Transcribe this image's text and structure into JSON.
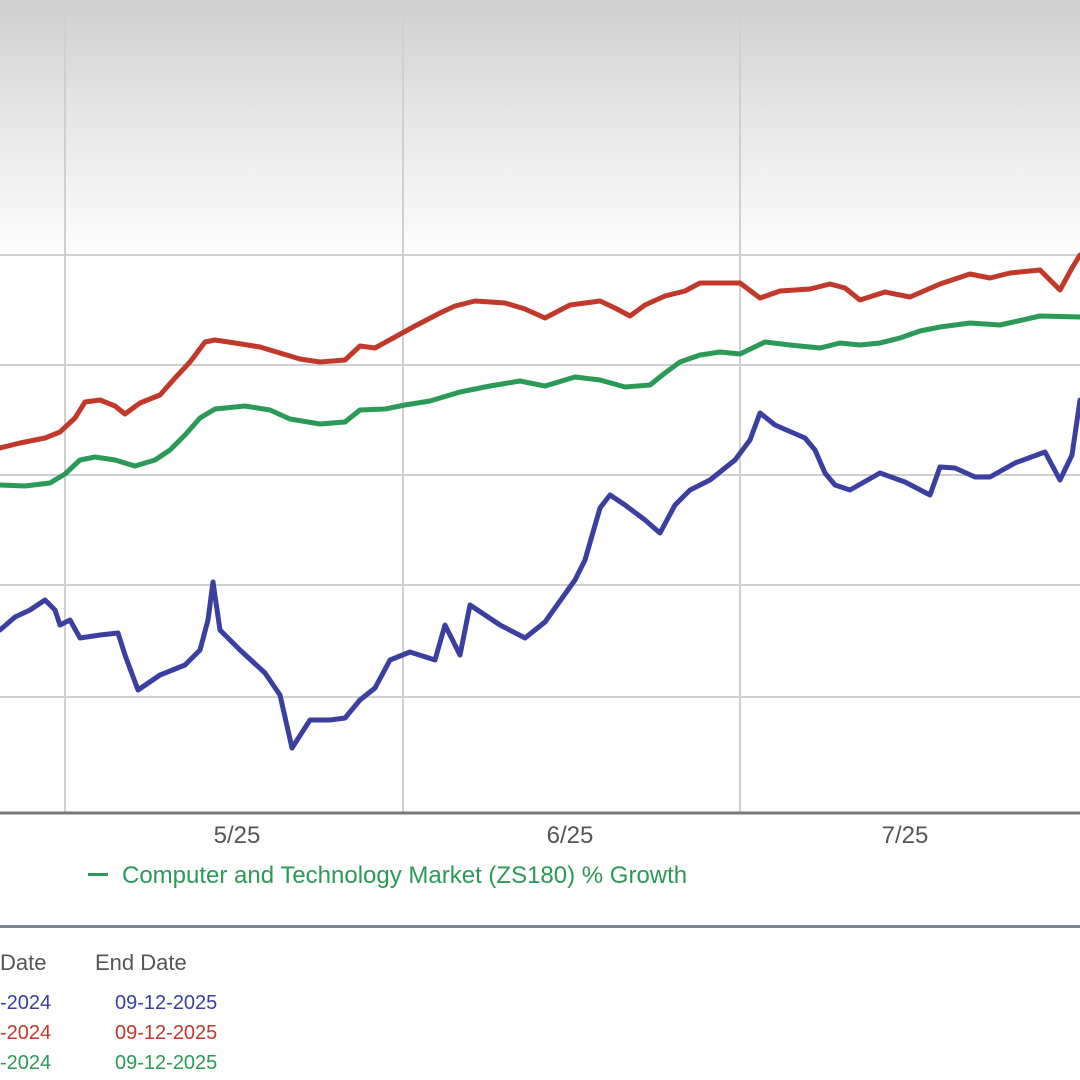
{
  "colors": {
    "series_blue": "#3a3fa0",
    "series_red": "#c0392b",
    "series_green": "#2a9a56",
    "grid": "#d0d0d0"
  },
  "chart_data": {
    "type": "line",
    "x_ticks": [
      "5/25",
      "6/25",
      "7/25"
    ],
    "grid": true,
    "series": [
      {
        "color": "red",
        "values": [
          [
            0,
            448
          ],
          [
            20,
            443
          ],
          [
            45,
            438
          ],
          [
            60,
            432
          ],
          [
            75,
            418
          ],
          [
            85,
            402
          ],
          [
            100,
            400
          ],
          [
            115,
            406
          ],
          [
            125,
            414
          ],
          [
            140,
            403
          ],
          [
            160,
            395
          ],
          [
            175,
            378
          ],
          [
            190,
            362
          ],
          [
            205,
            342
          ],
          [
            215,
            340
          ],
          [
            235,
            343
          ],
          [
            260,
            347
          ],
          [
            280,
            353
          ],
          [
            300,
            359
          ],
          [
            320,
            362
          ],
          [
            345,
            360
          ],
          [
            360,
            346
          ],
          [
            375,
            348
          ],
          [
            395,
            337
          ],
          [
            415,
            326
          ],
          [
            440,
            313
          ],
          [
            455,
            306
          ],
          [
            475,
            301
          ],
          [
            505,
            303
          ],
          [
            525,
            309
          ],
          [
            545,
            318
          ],
          [
            570,
            305
          ],
          [
            600,
            301
          ],
          [
            615,
            308
          ],
          [
            630,
            316
          ],
          [
            645,
            305
          ],
          [
            665,
            296
          ],
          [
            685,
            291
          ],
          [
            700,
            283
          ],
          [
            740,
            283
          ],
          [
            760,
            298
          ],
          [
            780,
            291
          ],
          [
            810,
            289
          ],
          [
            830,
            284
          ],
          [
            845,
            288
          ],
          [
            860,
            300
          ],
          [
            885,
            292
          ],
          [
            910,
            297
          ],
          [
            940,
            284
          ],
          [
            970,
            274
          ],
          [
            990,
            278
          ],
          [
            1010,
            273
          ],
          [
            1040,
            270
          ],
          [
            1060,
            290
          ],
          [
            1072,
            268
          ],
          [
            1080,
            255
          ]
        ]
      },
      {
        "color": "green",
        "series_label": "Computer and Technology Market (ZS180) % Growth",
        "values": [
          [
            0,
            485
          ],
          [
            25,
            486
          ],
          [
            50,
            483
          ],
          [
            65,
            474
          ],
          [
            80,
            460
          ],
          [
            95,
            457
          ],
          [
            115,
            460
          ],
          [
            135,
            466
          ],
          [
            155,
            460
          ],
          [
            170,
            450
          ],
          [
            185,
            435
          ],
          [
            200,
            418
          ],
          [
            215,
            409
          ],
          [
            245,
            406
          ],
          [
            270,
            410
          ],
          [
            290,
            419
          ],
          [
            320,
            424
          ],
          [
            345,
            422
          ],
          [
            360,
            410
          ],
          [
            385,
            409
          ],
          [
            405,
            405
          ],
          [
            430,
            401
          ],
          [
            460,
            392
          ],
          [
            490,
            386
          ],
          [
            520,
            381
          ],
          [
            545,
            386
          ],
          [
            575,
            377
          ],
          [
            600,
            380
          ],
          [
            625,
            387
          ],
          [
            650,
            385
          ],
          [
            665,
            373
          ],
          [
            680,
            362
          ],
          [
            700,
            355
          ],
          [
            720,
            352
          ],
          [
            740,
            354
          ],
          [
            765,
            342
          ],
          [
            790,
            345
          ],
          [
            820,
            348
          ],
          [
            840,
            343
          ],
          [
            860,
            345
          ],
          [
            880,
            343
          ],
          [
            900,
            338
          ],
          [
            920,
            331
          ],
          [
            940,
            327
          ],
          [
            970,
            323
          ],
          [
            1000,
            325
          ],
          [
            1040,
            316
          ],
          [
            1080,
            317
          ]
        ]
      },
      {
        "color": "blue",
        "values": [
          [
            0,
            630
          ],
          [
            15,
            617
          ],
          [
            30,
            610
          ],
          [
            45,
            600
          ],
          [
            55,
            610
          ],
          [
            60,
            625
          ],
          [
            70,
            620
          ],
          [
            80,
            638
          ],
          [
            100,
            635
          ],
          [
            118,
            633
          ],
          [
            125,
            655
          ],
          [
            138,
            690
          ],
          [
            160,
            675
          ],
          [
            185,
            665
          ],
          [
            200,
            650
          ],
          [
            208,
            620
          ],
          [
            213,
            582
          ],
          [
            220,
            630
          ],
          [
            240,
            650
          ],
          [
            265,
            673
          ],
          [
            280,
            695
          ],
          [
            292,
            748
          ],
          [
            310,
            720
          ],
          [
            330,
            720
          ],
          [
            345,
            718
          ],
          [
            360,
            700
          ],
          [
            375,
            688
          ],
          [
            390,
            660
          ],
          [
            410,
            652
          ],
          [
            435,
            660
          ],
          [
            445,
            625
          ],
          [
            455,
            645
          ],
          [
            460,
            655
          ],
          [
            470,
            605
          ],
          [
            500,
            625
          ],
          [
            525,
            638
          ],
          [
            545,
            622
          ],
          [
            575,
            580
          ],
          [
            585,
            560
          ],
          [
            600,
            508
          ],
          [
            610,
            495
          ],
          [
            625,
            505
          ],
          [
            645,
            520
          ],
          [
            660,
            533
          ],
          [
            675,
            505
          ],
          [
            690,
            490
          ],
          [
            710,
            480
          ],
          [
            735,
            460
          ],
          [
            750,
            440
          ],
          [
            760,
            413
          ],
          [
            775,
            425
          ],
          [
            805,
            438
          ],
          [
            815,
            450
          ],
          [
            825,
            473
          ],
          [
            835,
            485
          ],
          [
            850,
            490
          ],
          [
            880,
            473
          ],
          [
            905,
            482
          ],
          [
            930,
            495
          ],
          [
            940,
            467
          ],
          [
            955,
            468
          ],
          [
            975,
            477
          ],
          [
            990,
            477
          ],
          [
            1015,
            463
          ],
          [
            1045,
            452
          ],
          [
            1060,
            480
          ],
          [
            1072,
            455
          ],
          [
            1080,
            400
          ]
        ]
      }
    ]
  },
  "legend": {
    "label": "Computer and Technology Market (ZS180) % Growth"
  },
  "date_table": {
    "end_date_header": "End Date",
    "start_header_partial": "Date",
    "start_dates": [
      "-2024",
      "-2024",
      "-2024"
    ],
    "end_dates": [
      "09-12-2025",
      "09-12-2025",
      "09-12-2025"
    ]
  }
}
